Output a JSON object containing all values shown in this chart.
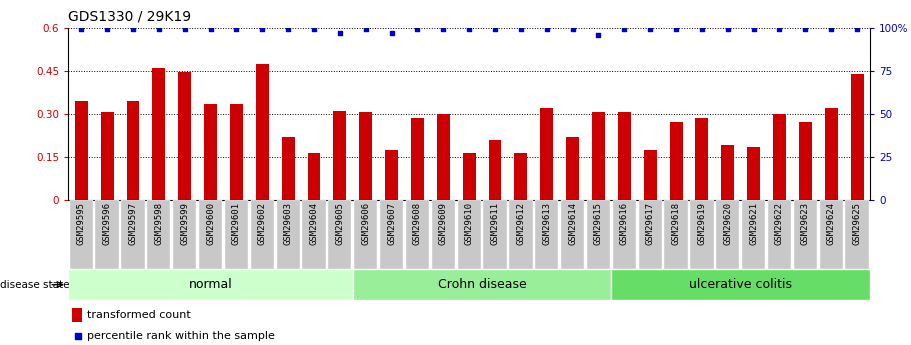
{
  "title": "GDS1330 / 29K19",
  "samples": [
    "GSM29595",
    "GSM29596",
    "GSM29597",
    "GSM29598",
    "GSM29599",
    "GSM29600",
    "GSM29601",
    "GSM29602",
    "GSM29603",
    "GSM29604",
    "GSM29605",
    "GSM29606",
    "GSM29607",
    "GSM29608",
    "GSM29609",
    "GSM29610",
    "GSM29611",
    "GSM29612",
    "GSM29613",
    "GSM29614",
    "GSM29615",
    "GSM29616",
    "GSM29617",
    "GSM29618",
    "GSM29619",
    "GSM29620",
    "GSM29621",
    "GSM29622",
    "GSM29623",
    "GSM29624",
    "GSM29625"
  ],
  "bar_values": [
    0.345,
    0.305,
    0.345,
    0.46,
    0.445,
    0.335,
    0.335,
    0.475,
    0.22,
    0.165,
    0.31,
    0.305,
    0.175,
    0.285,
    0.3,
    0.165,
    0.21,
    0.165,
    0.32,
    0.22,
    0.305,
    0.305,
    0.175,
    0.27,
    0.285,
    0.19,
    0.185,
    0.3,
    0.27,
    0.32,
    0.44
  ],
  "percentile_values": [
    99,
    99,
    99,
    99,
    99,
    99,
    99,
    99,
    99,
    99,
    97,
    99,
    97,
    99,
    99,
    99,
    99,
    99,
    99,
    99,
    96,
    99,
    99,
    99,
    99,
    99,
    99,
    99,
    99,
    99,
    99
  ],
  "groups": [
    {
      "label": "normal",
      "start": 0,
      "end": 10,
      "color": "#ccffcc"
    },
    {
      "label": "Crohn disease",
      "start": 10,
      "end": 20,
      "color": "#99ee99"
    },
    {
      "label": "ulcerative colitis",
      "start": 20,
      "end": 30,
      "color": "#66dd66"
    }
  ],
  "bar_color": "#cc0000",
  "dot_color": "#0000cc",
  "left_yticks": [
    0,
    0.15,
    0.3,
    0.45,
    0.6
  ],
  "left_ylabels": [
    "0",
    "0.15",
    "0.30",
    "0.45",
    "0.6"
  ],
  "right_yticks": [
    0,
    25,
    50,
    75,
    100
  ],
  "right_ylabels": [
    "0",
    "25",
    "50",
    "75",
    "100%"
  ],
  "ylabel_left_color": "#cc0000",
  "ylabel_right_color": "#0000cc",
  "background_color": "#ffffff",
  "title_fontsize": 10,
  "tick_fontsize": 6.5,
  "group_label_fontsize": 9,
  "legend_fontsize": 8,
  "group_n": [
    11,
    10,
    10
  ]
}
